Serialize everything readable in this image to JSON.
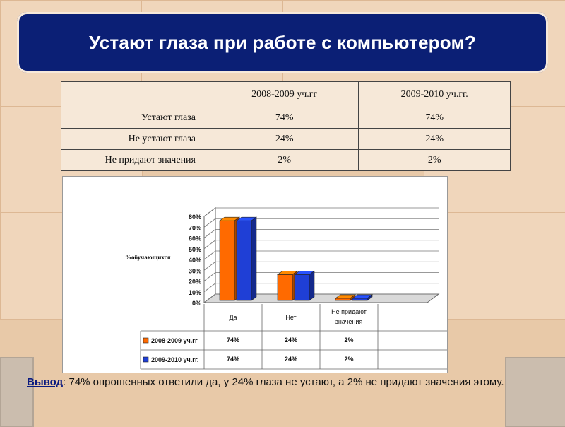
{
  "title": "Устают  глаза при работе с компьютером?",
  "table": {
    "headers": [
      "",
      "2008-2009 уч.гг",
      "2009-2010 уч.гг."
    ],
    "rows": [
      [
        "Устают глаза",
        "74%",
        "74%"
      ],
      [
        "Не устают глаза",
        "24%",
        "24%"
      ],
      [
        "Не придают значения",
        "2%",
        "2%"
      ]
    ]
  },
  "chart_data": {
    "type": "bar",
    "categories": [
      "Да",
      "Нет",
      "Не придают значения"
    ],
    "series": [
      {
        "name": "2008-2009 уч.гг",
        "values": [
          74,
          24,
          2
        ],
        "color": "#ff6a00"
      },
      {
        "name": "2009-2010 уч.гг.",
        "values": [
          74,
          24,
          2
        ],
        "color": "#1f3fd6"
      }
    ],
    "ylabel": "%обучающихся",
    "ylim": [
      0,
      80
    ],
    "yticks": [
      "0%",
      "10%",
      "20%",
      "30%",
      "40%",
      "50%",
      "60%",
      "70%",
      "80%"
    ],
    "data_table": [
      [
        "74%",
        "24%",
        "2%"
      ],
      [
        "74%",
        "24%",
        "2%"
      ]
    ],
    "grid": true,
    "legend": "data-table"
  },
  "conclusion": {
    "lead": "Вывод",
    "text": ": 74% опрошенных ответили да,  у 24% глаза не устают, а 2% не придают значения этому."
  }
}
